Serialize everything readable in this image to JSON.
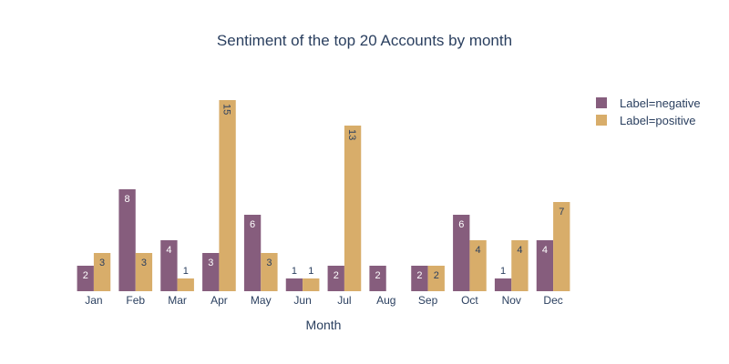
{
  "chart_data": {
    "type": "bar",
    "title": "Sentiment of the top 20 Accounts by month",
    "xlabel": "Month",
    "ylabel": "",
    "categories": [
      "Jan",
      "Feb",
      "Mar",
      "Apr",
      "May",
      "Jun",
      "Jul",
      "Aug",
      "Sep",
      "Oct",
      "Nov",
      "Dec"
    ],
    "series": [
      {
        "name": "Label=negative",
        "color": "#865d7d",
        "values": [
          2,
          8,
          4,
          3,
          6,
          1,
          2,
          2,
          2,
          6,
          1,
          4
        ]
      },
      {
        "name": "Label=positive",
        "color": "#d8ad6a",
        "values": [
          3,
          3,
          1,
          15,
          3,
          1,
          13,
          null,
          2,
          4,
          4,
          7
        ]
      }
    ],
    "ylim": [
      0,
      15
    ],
    "grid": false,
    "legend_position": "top-right"
  }
}
